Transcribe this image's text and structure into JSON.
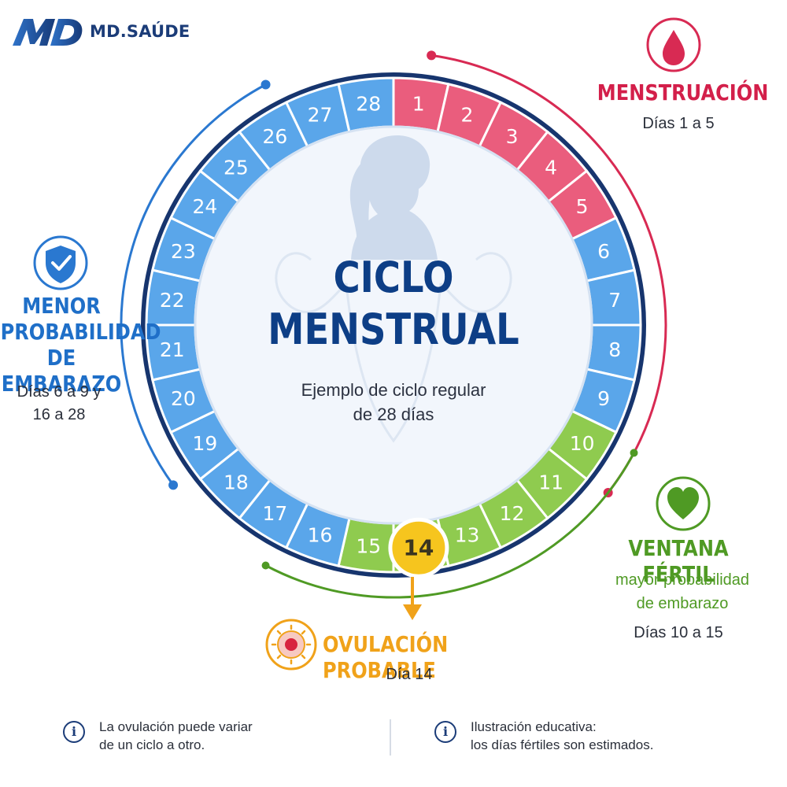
{
  "brand": {
    "name": "MD.SAÚDE"
  },
  "center": {
    "title_line1": "CICLO",
    "title_line2": "MENSTRUAL",
    "subtitle_line1": "Ejemplo de ciclo regular",
    "subtitle_line2": "de 28 días"
  },
  "cycle": {
    "days": [
      {
        "label": "1",
        "phase": "menstruacion"
      },
      {
        "label": "2",
        "phase": "menstruacion"
      },
      {
        "label": "3",
        "phase": "menstruacion"
      },
      {
        "label": "4",
        "phase": "menstruacion"
      },
      {
        "label": "5",
        "phase": "menstruacion"
      },
      {
        "label": "6",
        "phase": "menor"
      },
      {
        "label": "7",
        "phase": "menor"
      },
      {
        "label": "8",
        "phase": "menor"
      },
      {
        "label": "9",
        "phase": "menor"
      },
      {
        "label": "10",
        "phase": "fertil"
      },
      {
        "label": "11",
        "phase": "fertil"
      },
      {
        "label": "12",
        "phase": "fertil"
      },
      {
        "label": "13",
        "phase": "fertil"
      },
      {
        "label": "14",
        "phase": "ovulacion"
      },
      {
        "label": "15",
        "phase": "fertil"
      },
      {
        "label": "16",
        "phase": "menor"
      },
      {
        "label": "17",
        "phase": "menor"
      },
      {
        "label": "18",
        "phase": "menor"
      },
      {
        "label": "19",
        "phase": "menor"
      },
      {
        "label": "20",
        "phase": "menor"
      },
      {
        "label": "21",
        "phase": "menor"
      },
      {
        "label": "22",
        "phase": "menor"
      },
      {
        "label": "23",
        "phase": "menor"
      },
      {
        "label": "24",
        "phase": "menor"
      },
      {
        "label": "25",
        "phase": "menor"
      },
      {
        "label": "26",
        "phase": "menor"
      },
      {
        "label": "27",
        "phase": "menor"
      },
      {
        "label": "28",
        "phase": "menor"
      }
    ]
  },
  "phase_colors": {
    "menstruacion": "#ea5d7d",
    "menor": "#5aa6ea",
    "fertil": "#8fcb4f",
    "ovulacion": "#f6c51e"
  },
  "labels": {
    "menstruacion": {
      "title": "MENSTRUACIÓN",
      "days": "Días 1 a 5",
      "color": "#d31f4a",
      "icon": "blood-drop-icon"
    },
    "menor": {
      "title_l1": "MENOR",
      "title_l2": "PROBABILIDAD",
      "title_l3": "DE EMBARAZO",
      "days_l1": "Días 6 a 9 y",
      "days_l2": "16 a 28",
      "color": "#1f6fc8",
      "icon": "shield-check-icon"
    },
    "fertil": {
      "title": "VENTANA FÉRTIL",
      "sub_l1": "mayor probabilidad",
      "sub_l2": "de embarazo",
      "days": "Días 10 a 15",
      "color": "#4f9a24",
      "icon": "heart-icon"
    },
    "ovulacion": {
      "title": "OVULACIÓN PROBABLE",
      "days": "Día 14",
      "color": "#f0a21a",
      "icon": "ovum-icon"
    }
  },
  "notes": [
    {
      "line1": "La ovulación puede variar",
      "line2": "de un ciclo a otro.",
      "icon": "info-icon"
    },
    {
      "line1": "Ilustración educativa:",
      "line2": "los días fértiles son estimados.",
      "icon": "info-icon"
    }
  ]
}
